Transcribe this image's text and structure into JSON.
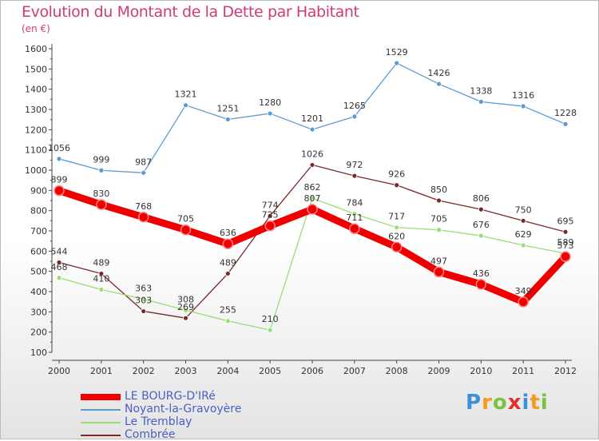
{
  "chart_data": {
    "type": "line",
    "title": "Evolution du Montant de la Dette par Habitant",
    "subtitle": "(en €)",
    "categories": [
      "2000",
      "2001",
      "2002",
      "2003",
      "2004",
      "2005",
      "2006",
      "2007",
      "2008",
      "2009",
      "2010",
      "2011",
      "2012"
    ],
    "yticks": [
      "100",
      "200",
      "300",
      "400",
      "500",
      "600",
      "700",
      "800",
      "900",
      "1000",
      "1100",
      "1200",
      "1300",
      "1400",
      "1500",
      "1600"
    ],
    "ylim": [
      100,
      1600
    ],
    "series": [
      {
        "name": "Noyant-la-Gravoyère",
        "color": "#5b9bd5",
        "values": [
          1056,
          999,
          987,
          1321,
          1251,
          1280,
          1201,
          1265,
          1529,
          1426,
          1338,
          1316,
          1228
        ]
      },
      {
        "name": "Combrée",
        "color": "#7a2a2a",
        "values": [
          544,
          489,
          303,
          269,
          489,
          774,
          1026,
          972,
          926,
          850,
          806,
          750,
          695
        ]
      },
      {
        "name": "Le Tremblay",
        "color": "#99dd77",
        "values": [
          468,
          410,
          363,
          308,
          255,
          210,
          862,
          784,
          717,
          705,
          676,
          629,
          589
        ]
      },
      {
        "name": "LE BOURG-D'IRé",
        "color": "#ee0000",
        "values": [
          899,
          830,
          768,
          705,
          636,
          725,
          807,
          711,
          620,
          497,
          436,
          349,
          573
        ]
      }
    ],
    "legend": [
      {
        "name": "LE BOURG-D'IRé",
        "color": "#ee0000"
      },
      {
        "name": "Noyant-la-Gravoyère",
        "color": "#5b9bd5"
      },
      {
        "name": "Le Tremblay",
        "color": "#99dd77"
      },
      {
        "name": "Combrée",
        "color": "#7a2a2a"
      }
    ],
    "legend_position": "bottom-left",
    "grid": false
  },
  "logo": {
    "letters": [
      {
        "ch": "P",
        "color": "#3d8fd6"
      },
      {
        "ch": "r",
        "color": "#f39a1f"
      },
      {
        "ch": "o",
        "color": "#7cc242"
      },
      {
        "ch": "x",
        "color": "#e0312e"
      },
      {
        "ch": "i",
        "color": "#3d8fd6"
      },
      {
        "ch": "t",
        "color": "#f39a1f"
      },
      {
        "ch": "i",
        "color": "#7cc242"
      }
    ]
  }
}
